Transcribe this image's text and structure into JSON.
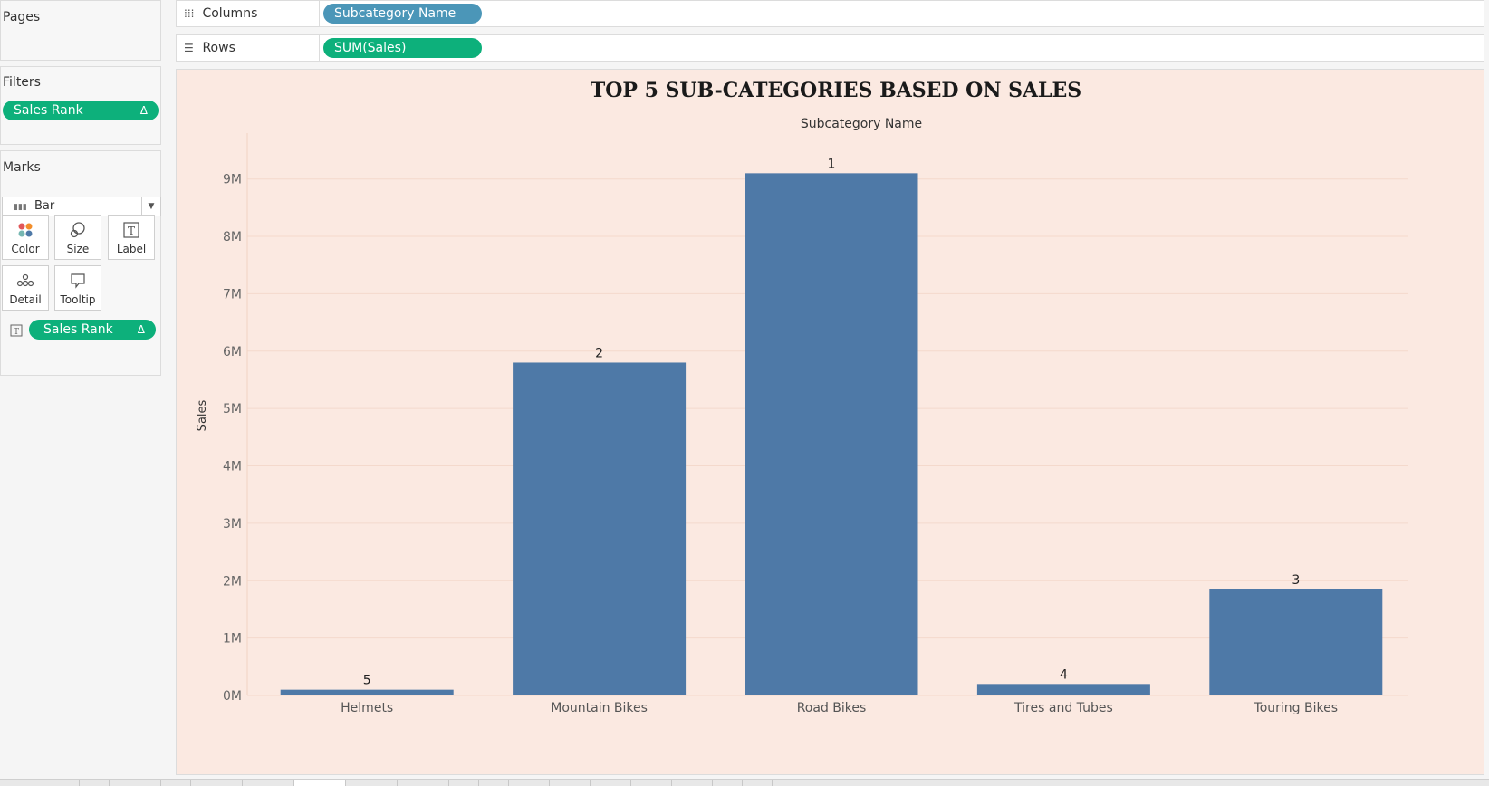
{
  "pages": {
    "title": "Pages"
  },
  "filters": {
    "title": "Filters",
    "pill": {
      "label": "Sales Rank",
      "delta": "Δ"
    }
  },
  "marks": {
    "title": "Marks",
    "type": "Bar",
    "buttons": [
      {
        "name": "color",
        "label": "Color"
      },
      {
        "name": "size",
        "label": "Size"
      },
      {
        "name": "label",
        "label": "Label"
      },
      {
        "name": "detail",
        "label": "Detail"
      },
      {
        "name": "tooltip",
        "label": "Tooltip"
      }
    ],
    "pill": {
      "label": "Sales Rank",
      "delta": "Δ"
    }
  },
  "shelves": {
    "columns": {
      "label": "Columns",
      "pill": "Subcategory Name"
    },
    "rows": {
      "label": "Rows",
      "pill": "SUM(Sales)"
    }
  },
  "colors": {
    "accent_green": "#0db07b",
    "pill_blue": "#4b96b8",
    "bar": "#4e79a7",
    "viz_bg": "#fbe9e1"
  },
  "chart_data": {
    "type": "bar",
    "title": "TOP 5 SUB-CATEGORIES BASED ON SALES",
    "column_header": "Subcategory Name",
    "ylabel": "Sales",
    "categories": [
      "Helmets",
      "Mountain Bikes",
      "Road Bikes",
      "Tires and Tubes",
      "Touring Bikes"
    ],
    "values": [
      100000,
      5800000,
      9100000,
      200000,
      1850000
    ],
    "data_labels": [
      "5",
      "2",
      "1",
      "4",
      "3"
    ],
    "ylim": [
      0,
      9800000
    ],
    "yticks": [
      0,
      1000000,
      2000000,
      3000000,
      4000000,
      5000000,
      6000000,
      7000000,
      8000000,
      9000000
    ],
    "ytick_labels": [
      "0M",
      "1M",
      "2M",
      "3M",
      "4M",
      "5M",
      "6M",
      "7M",
      "8M",
      "9M"
    ],
    "grid": true
  }
}
